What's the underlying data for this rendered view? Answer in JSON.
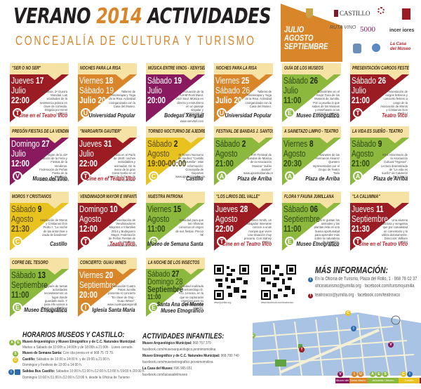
{
  "header": {
    "title_part1": "VERANO ",
    "title_year": "2014",
    "title_part2": " ACTIVIDADES",
    "subtitle": "CONCEJALÍA DE CULTURA Y TURISMO",
    "months": [
      "JULIO",
      "AGOSTO",
      "SEPTIEMBRE"
    ]
  },
  "logos": [
    "Ayuntamiento de Jumilla",
    "Castillo de Jumilla",
    "Museo Municipal Jerónimo Molina Jumilla",
    "Teatro Vico",
    "Ruta del Vino Jumilla",
    "Vino de Jumilla 5000 años de historia",
    "incer iores",
    "Escudo",
    "Asociación",
    "La Casa del Museo"
  ],
  "colors": {
    "darkred": "#9b1c22",
    "orange": "#d9852a",
    "purple": "#8a1a5f",
    "green": "#8cb83e",
    "yellow": "#e8c21f",
    "header_bg": "#f6e2a4",
    "title_orange": "#d9852a"
  },
  "events": [
    {
      "title": "\"SER O NO SER\"",
      "line1": "Jueves ",
      "n1": "17",
      "line2": "Julio",
      "line3": "22:00",
      "desc": "Varsovia, 2ª Guerra Mundial. Las vicisitudes de la resistencia polaca en clave de comedia. Dirigida por Ernst Lubitsch",
      "icon": "T",
      "venue": "Cine en el Teatro Vico",
      "color": "darkred"
    },
    {
      "title": "NOCHES PARA LA RISA",
      "line1": "Viernes ",
      "n1": "18",
      "line2": "Sábado 19",
      "line3": "Julio 20:00",
      "desc": "Talleres de Risoterapia y Yoga de la Risa. Actividad coorganizada con la Casa del Museo.",
      "icon": "U",
      "venue": "Universidad Popular",
      "color": "orange"
    },
    {
      "title": "MÚSICA ENTRE VINOS - XENYSEL",
      "line1": "Sábado ",
      "n1": "19",
      "line2": "Julio",
      "line3": "20:00",
      "desc": "Actuación de la AJAM Rock Band. Jazz Soul. Música en directo y enoturismo en un paisaje singular y excepcional de Jumilla. www.xenysel.com",
      "icon": "",
      "venue": "Bodegas Xenysel",
      "color": "purple"
    },
    {
      "title": "NOCHES PARA LA RISA",
      "line1": "Viernes ",
      "n1": "25",
      "line2": "Sábado 26",
      "line3": "Julio 20:00",
      "desc": "Talleres de Risoterapia y Yoga de la Risa. Actividad coorganizada con la Casa del Museo.",
      "icon": "U",
      "venue": "Universidad Popular",
      "color": "orange"
    },
    {
      "title": "GUÍA DE LOS MUSEOS",
      "line1": "Sábado ",
      "n1": "26",
      "line2": "Julio",
      "line3": "11:00",
      "desc": "Conviértete en el mejor Guía de los Museos de Jumilla. Pon a prueba lo que sabes de los Museos y enséñaselo a tus amigos y amigas. Precio 5€",
      "icon": "E",
      "venue": "Museo Etnográfico",
      "color": "green"
    },
    {
      "title": "PRESENTACIÓN CARGOS FESTEROS",
      "line1": "Sábado ",
      "n1": "26",
      "line2": "Julio",
      "line3": "21:00",
      "desc": "Presentación de cargos festeros y concierto festero a cargo de la Asociación de Moros y Cristianos Don Pedro I",
      "icon": "T",
      "venue": "Teatro Vico",
      "color": "darkred"
    },
    {
      "title": "PREGÓN FIESTAS DE LA VENDIMIA",
      "line1": "Domingo ",
      "n1": "27",
      "line2": "Julio",
      "line3": "12:00",
      "desc": "Pregón de la 43ª Edición de la Feria y Fiestas de la Vendimia. Federación de Peñas Fiesta de la Vendimia. www.fiestadelavendimia.com",
      "icon": "V",
      "venue": "Museo del Vino",
      "color": "purple"
    },
    {
      "title": "\"MARGARITA GAUTIER\"",
      "line1": "Jueves ",
      "n1": "31",
      "line2": "Julio",
      "line3": "22:00",
      "desc": "La vida en el París de 1840: noches inolvidables y animadas. De la mano de la gran Greta Garbo en el papel de la Dama de las Camelias.",
      "icon": "T",
      "venue": "Cine en el Teatro Vico",
      "color": "darkred"
    },
    {
      "title": "TORNEO NOCTURNO DE AJEDREZ",
      "line1": "Sábado ",
      "n1": "2",
      "line2": "Agosto",
      "line3": "19:00-00:00",
      "desc": "III Torneo Nocturno de Ajedrez \"Castillo de Jumilla\". Más información: Concejalía de Deportes www.ajedrezjumilla.com",
      "icon": "C",
      "venue": "Castillo",
      "color": "yellow"
    },
    {
      "title": "FESTIVAL DE BANDAS J. SANTOS",
      "line1": "Sábado ",
      "n1": "2",
      "line2": "Agosto",
      "line3": "21:00",
      "desc": "XVII Festival de Bandas de Música de la Asociación Musical \"Julián Santos\" www.ajsantosbanda.es",
      "icon": "A",
      "venue": "Plaza de Arriba",
      "color": "green"
    },
    {
      "title": "A SAINETAZO LIMPIO - TEATRO",
      "line1": "Viernes ",
      "n1": "8",
      "line2": "Agosto",
      "line3": "20:30",
      "desc": "Sainetes de los Hermanos Álvarez Quintero representados por el Grupo de Teatro Talía",
      "icon": "A",
      "venue": "Plaza de Arriba",
      "color": "green"
    },
    {
      "title": "LA VIDA ES SUEÑO - TEATRO",
      "line1": "Sábado ",
      "n1": "9",
      "line2": "Agosto",
      "line3": "21:00",
      "desc": "XXX Aniversario de la Asociación Cultural \"Hypnos\". Lectura dramatizada de \"La vida es sueño\" de Calderón de la Barca",
      "icon": "A",
      "venue": "Plaza de Arriba",
      "color": "green"
    },
    {
      "title": "MOROS Y CRISTIANOS",
      "line1": "Sábado ",
      "n1": "9",
      "line2": "Agosto",
      "line3": "21:30",
      "desc": "Asociación de Moros y Cristianos Don Pedro I. \"La noche de las antorchas o izada de banderas\"",
      "icon": "C",
      "venue": "Castillo",
      "color": "yellow"
    },
    {
      "title": "VENDIMIADOR MAYOR E INFANTIL",
      "line1": "Domingo ",
      "n1": "10",
      "line2": "Agosto",
      "line3": "12:00",
      "desc": "Presentación de Vendimiadores Mayores e Infantiles 2014 y Bodeguero Mayor. Federación de Peñas Fiestas de la Vendimia. www.fiestadelavendimia.com",
      "icon": "T",
      "venue": "Teatro Vico",
      "color": "darkred"
    },
    {
      "title": "NUESTRA PATRONA",
      "line1": "Viernes ",
      "n1": "15",
      "line2": "Agosto",
      "line3": "11:00",
      "desc": "Actividad para que los niños/as conozcan el origen de sus fiestas. Precio 5€",
      "icon": "S",
      "venue": "Museo de Semana Santa",
      "color": "green"
    },
    {
      "title": "\"LOS LIRIOS DEL VALLE\"",
      "line1": "Jueves ",
      "n1": "28",
      "line2": "Agosto",
      "line3": "22:00",
      "desc": "Homer Smith, un trabajador itinerante conoce a unas monjas que viven una situación muy precaria. Con Sidney Poitier.",
      "icon": "T",
      "venue": "Cine en el Teatro Vico",
      "color": "darkred"
    },
    {
      "title": "FLORA Y FAUNA JUMILLANA",
      "line1": "Sábado ",
      "n1": "06",
      "line2": "Septiembre",
      "line3": "11:00",
      "desc": "Si te gustan los animales y las plantas ésta es una buena oportunidad para aprender más sobre la naturaleza de tu pueblo. Gratuito.",
      "icon": "E",
      "venue": "Museo Etnográfico",
      "color": "green"
    },
    {
      "title": "\"LA CALUMNIA\"",
      "line1": "Jueves ",
      "n1": "11",
      "line2": "Septiembre",
      "line3": "21:30",
      "desc": "Una alumna maliciosa y vengativa que por casualidad un comentario y lo utiliza dolosamente. Dirección: William Wyler",
      "icon": "T",
      "venue": "Cine en el Teatro Vico",
      "color": "darkred"
    },
    {
      "title": "COFRE DEL TESORO",
      "line1": "Sábado ",
      "n1": "13",
      "line2": "Septiembre",
      "line3": "11:00",
      "desc": "Después de tantas actividades necesitaremos un lugar donde guardarlo todo. Y para ello vamos a hacer un cofre bien chulo. Precio 5€",
      "icon": "E",
      "venue": "Museo Etnográfico",
      "color": "green"
    },
    {
      "title": "CONCIERTO: GUAU WINES",
      "line1": "Viernes ",
      "n1": "20",
      "line2": "Septiembre",
      "line3": "20:00",
      "desc": "Asociación Cuatro Patas Jumilla presenta el concierto \"En clave de Dog - Guau Wines\". www.cuatropatasjumilla.com",
      "icon": "I",
      "venue": "Iglesia Santa María",
      "color": "orange"
    },
    {
      "title": "LA NOCHE DE LOS INSECTOS",
      "line1": "Sábado ",
      "n1": "27",
      "line2": "Domingo 28",
      "line3": "Septiembre",
      "line4": "11:00",
      "desc": "Actividad realizada por el entomólogo D. Fco. Lencina, en la que se capturarán especies para su clasificación y estudio.",
      "icon": "E",
      "venue": "Santa Ana del Monte",
      "venue2": "Museo Etnográfico",
      "color": "green"
    }
  ],
  "qr": [
    {
      "caption": "www.jumilla.org"
    },
    {
      "caption": "www.facebook.com/teatrovico"
    }
  ],
  "info": {
    "title": "MÁS INFORMACIÓN:",
    "line1": "En la Oficina de Turismo, Plaza del Rollo, 1 · 968 78 02 37",
    "line2": "oficinaturismo@jumilla.org · facebook.com/turismojumilla",
    "line3": "teatrovico@jumilla.org · facebook.com/teatrovico"
  },
  "horarios": {
    "title": "HORARIOS MUSEOS Y CASTILLO:",
    "l1b": "Museo Arqueológico  y Museo Etnográfico y de C.C. Naturales Municipal:",
    "l2": "Martes a Sábado de 10:00h a 14:00h y de 18:00h a 21:00h · Lunes cerrado.",
    "l3b": "Museo de Semana Santa:",
    "l3": " Con cita previa en el 968 75 73 79.",
    "l4b": "Castillo:",
    "l4": " Sábados de 10:00 a 14:00 h. y de 19:00 a 21:00 h.",
    "l5": "Domingos y Festivos de 10:00 a 14:00 h.",
    "l6b": "Salidas Bus Castillo:",
    "l6": " Sábados 10:00 h./11:00 h./12:00 h./13:00 h./19:00 h./20:00 h.",
    "l7": "Domingos 10:00 h./11:00 h./12:00 h./13:00 h. desde la Oficina de Turismo"
  },
  "infantiles": {
    "title": "ACTIVIDADES INFANTILES:",
    "l1b": "Museo Arqueológico Municipal:",
    "l1": " 968 757 379",
    "l2": "facebook.com/museoarqueologico.jeronimomolina",
    "l3b": "Museo Etnográfico y de C.C. Naturales Municipal:",
    "l3": " 968 780 740",
    "l4": "facebook.com/museoetnografico.jeronimomolina",
    "l5b": "La Casa del Museo:",
    "l5": " 696 965 651",
    "l6": "facebook.com/lacasadelmuseo"
  },
  "map_legend": [
    {
      "label": "Museo del Vino",
      "color": "#8a1a5f",
      "icons": [
        "V"
      ]
    },
    {
      "label": "Santa María · U.P.",
      "color": "#d9852a",
      "icons": [
        "I",
        "U"
      ]
    },
    {
      "label": "Arboleda / Museo Municipal",
      "color": "#8cb83e",
      "icons": [
        "A",
        "E",
        "S"
      ]
    },
    {
      "label": "Castillo",
      "color": "#e8c21f",
      "icons": [
        "C",
        "i"
      ]
    },
    {
      "label": "Teatro Vico",
      "color": "#9b1c22",
      "icons": [
        "T"
      ]
    }
  ]
}
